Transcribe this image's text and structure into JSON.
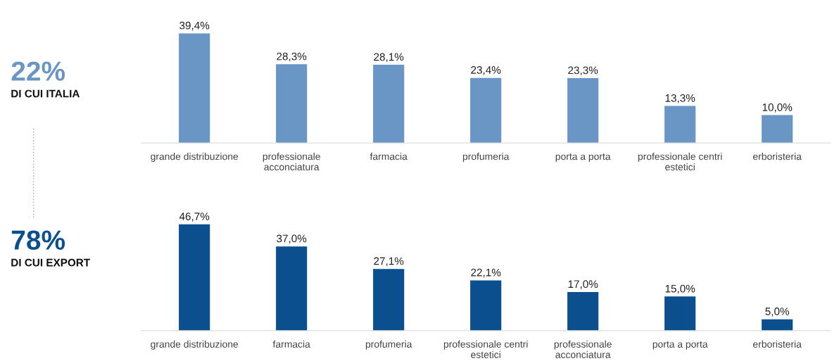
{
  "chart_data": [
    {
      "type": "other",
      "annotations": [
        "22%",
        "DI CUI ITALIA",
        "78%",
        "DI CUI EXPORT"
      ],
      "colors": [
        "#6a96c5",
        "#0b4f8e"
      ]
    },
    {
      "type": "bar",
      "categories": [
        "grande distribuzione",
        "professionale acconciatura",
        "farmacia",
        "profumeria",
        "porta a porta",
        "professionale centri estetici",
        "erboristeria"
      ],
      "values": [
        39.4,
        28.3,
        28.1,
        23.4,
        23.3,
        13.3,
        10.0
      ],
      "value_labels": [
        "39,4%",
        "28,3%",
        "28,1%",
        "23,4%",
        "23,3%",
        "13,3%",
        "10,0%"
      ],
      "color": "#6a96c5",
      "tick_labels": "x",
      "grid": false,
      "legend": false
    },
    {
      "type": "bar",
      "categories": [
        "grande distribuzione",
        "farmacia",
        "profumeria",
        "professionale centri estetici",
        "professionale acconciatura",
        "porta a porta",
        "erboristeria"
      ],
      "values": [
        46.7,
        37.0,
        27.1,
        22.1,
        17.0,
        15.0,
        5.0
      ],
      "value_labels": [
        "46,7%",
        "37,0%",
        "27,1%",
        "22,1%",
        "17,0%",
        "15,0%",
        "5,0%"
      ],
      "color": "#0b4f8e",
      "tick_labels": "x",
      "grid": false,
      "legend": false
    }
  ]
}
